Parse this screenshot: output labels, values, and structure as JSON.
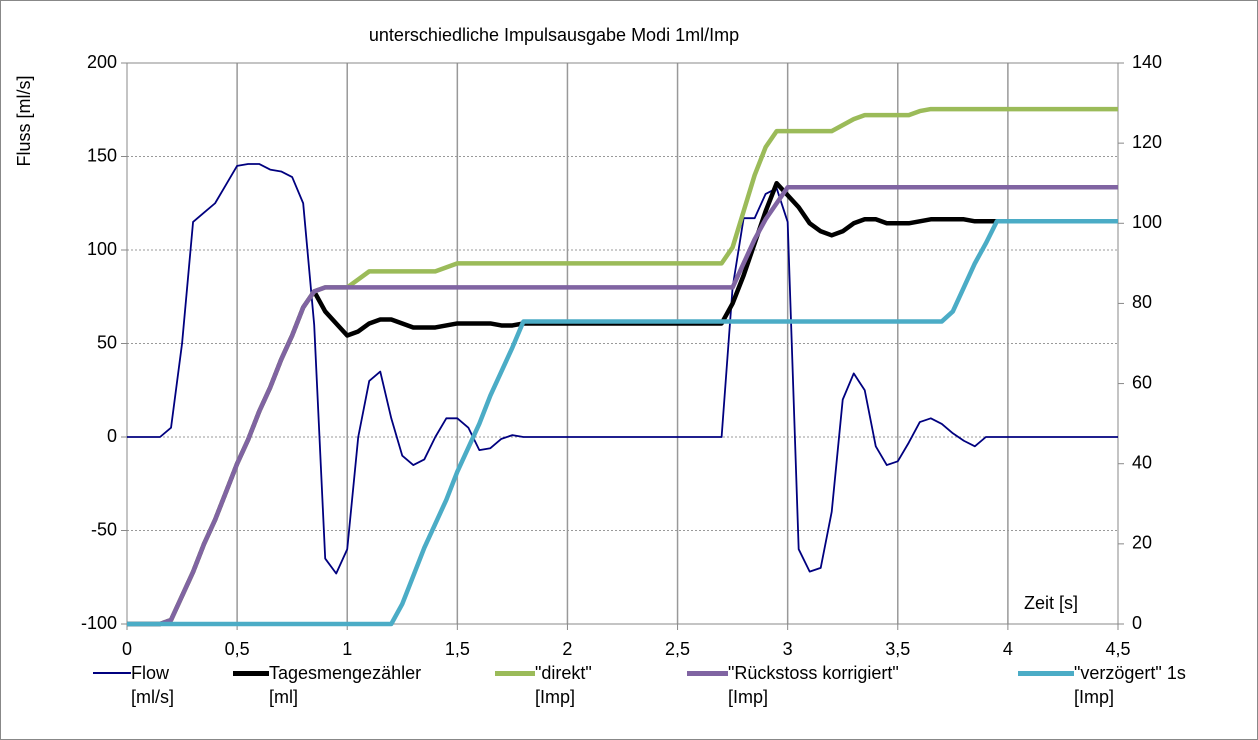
{
  "chart_data": {
    "type": "line",
    "title": "unterschiedliche   Impulsausgabe   Modi 1ml/Imp",
    "y_label": "Fluss [ml/s]",
    "x_label": "Zeit  [s]",
    "grid": true,
    "xlim": [
      0,
      4.5
    ],
    "xticks": [
      0,
      {
        "value": 0.5,
        "label": "0,5"
      },
      1,
      {
        "value": 1.5,
        "label": "1,5"
      },
      2,
      {
        "value": 2.5,
        "label": "2,5"
      },
      3,
      {
        "value": 3.5,
        "label": "3,5"
      },
      4,
      {
        "value": 4.5,
        "label": "4,5"
      }
    ],
    "ylim": [
      -100,
      200
    ],
    "yticks": [
      -100,
      -50,
      0,
      50,
      100,
      150,
      200
    ],
    "y2lim": [
      0,
      140
    ],
    "y2ticks": [
      0,
      20,
      40,
      60,
      80,
      100,
      120,
      140
    ],
    "x": [
      0,
      0.05,
      0.1,
      0.15,
      0.2,
      0.25,
      0.3,
      0.35,
      0.4,
      0.45,
      0.5,
      0.55,
      0.6,
      0.65,
      0.7,
      0.75,
      0.8,
      0.85,
      0.9,
      0.95,
      1,
      1.05,
      1.1,
      1.15,
      1.2,
      1.25,
      1.3,
      1.35,
      1.4,
      1.45,
      1.5,
      1.55,
      1.6,
      1.65,
      1.7,
      1.75,
      1.8,
      1.85,
      1.9,
      1.95,
      2,
      2.05,
      2.1,
      2.15,
      2.2,
      2.25,
      2.3,
      2.35,
      2.4,
      2.45,
      2.5,
      2.55,
      2.6,
      2.65,
      2.7,
      2.75,
      2.8,
      2.85,
      2.9,
      2.95,
      3,
      3.05,
      3.1,
      3.15,
      3.2,
      3.25,
      3.3,
      3.35,
      3.4,
      3.45,
      3.5,
      3.55,
      3.6,
      3.65,
      3.7,
      3.75,
      3.8,
      3.85,
      3.9,
      3.95,
      4,
      4.05,
      4.1,
      4.15,
      4.2,
      4.25,
      4.3,
      4.35,
      4.4,
      4.45,
      4.5
    ],
    "series": [
      {
        "name": "Flow [ml/s]",
        "color": "#00007f",
        "axis": "y",
        "values": [
          0,
          0,
          0,
          0,
          5,
          50,
          115,
          120,
          125,
          135,
          145,
          146,
          146,
          143,
          142,
          139,
          125,
          60,
          -65,
          -73,
          -60,
          0,
          30,
          35,
          10,
          -10,
          -15,
          -12,
          0,
          10,
          10,
          5,
          -7,
          -6,
          -1,
          1,
          0,
          0,
          0,
          0,
          0,
          0,
          0,
          0,
          0,
          0,
          0,
          0,
          0,
          0,
          0,
          0,
          0,
          0,
          0,
          80,
          117,
          117,
          130,
          133,
          115,
          -60,
          -72,
          -70,
          -40,
          20,
          34,
          25,
          -5,
          -15,
          -13,
          -3,
          8,
          10,
          7,
          2,
          -2,
          -5,
          0,
          0,
          0,
          0,
          0,
          0,
          0,
          0,
          0,
          0,
          0,
          0,
          0
        ]
      },
      {
        "name": "Tagesmengezähler [ml]",
        "color": "#000000",
        "axis": "y2",
        "values": [
          0,
          0,
          0,
          0,
          1,
          7,
          13,
          20,
          26,
          33,
          40,
          46,
          53,
          59,
          66,
          72,
          79,
          83,
          78,
          75,
          72,
          73,
          75,
          76,
          76,
          75,
          74,
          74,
          74,
          74.5,
          75,
          75,
          75,
          75,
          74.5,
          74.5,
          75,
          75,
          75,
          75,
          75,
          75,
          75,
          75,
          75,
          75,
          75,
          75,
          75,
          75,
          75,
          75,
          75,
          75,
          75,
          80,
          87,
          95,
          103,
          110,
          107,
          104,
          100,
          98,
          97,
          98,
          100,
          101,
          101,
          100,
          100,
          100,
          100.5,
          101,
          101,
          101,
          101,
          100.5,
          100.5,
          100.5,
          100.5,
          100.5,
          100.5,
          100.5,
          100.5,
          100.5,
          100.5,
          100.5,
          100.5,
          100.5,
          100.5
        ]
      },
      {
        "name": "\"direkt\" [Imp]",
        "color": "#9bbb59",
        "axis": "y2",
        "values": [
          0,
          0,
          0,
          0,
          1,
          7,
          13,
          20,
          26,
          33,
          40,
          46,
          53,
          59,
          66,
          72,
          79,
          83,
          84,
          84,
          84,
          86,
          88,
          88,
          88,
          88,
          88,
          88,
          88,
          89,
          90,
          90,
          90,
          90,
          90,
          90,
          90,
          90,
          90,
          90,
          90,
          90,
          90,
          90,
          90,
          90,
          90,
          90,
          90,
          90,
          90,
          90,
          90,
          90,
          90,
          94,
          103,
          112,
          119,
          123,
          123,
          123,
          123,
          123,
          123,
          124.5,
          126,
          127,
          127,
          127,
          127,
          127,
          128,
          128.5,
          128.5,
          128.5,
          128.5,
          128.5,
          128.5,
          128.5,
          128.5,
          128.5,
          128.5,
          128.5,
          128.5,
          128.5,
          128.5,
          128.5,
          128.5,
          128.5,
          128.5
        ]
      },
      {
        "name": "\"Rückstoss korrigiert\" [Imp]",
        "color": "#8064a2",
        "axis": "y2",
        "values": [
          0,
          0,
          0,
          0,
          1,
          7,
          13,
          20,
          26,
          33,
          40,
          46,
          53,
          59,
          66,
          72,
          79,
          83,
          84,
          84,
          84,
          84,
          84,
          84,
          84,
          84,
          84,
          84,
          84,
          84,
          84,
          84,
          84,
          84,
          84,
          84,
          84,
          84,
          84,
          84,
          84,
          84,
          84,
          84,
          84,
          84,
          84,
          84,
          84,
          84,
          84,
          84,
          84,
          84,
          84,
          84,
          90,
          96,
          101,
          105,
          109,
          109,
          109,
          109,
          109,
          109,
          109,
          109,
          109,
          109,
          109,
          109,
          109,
          109,
          109,
          109,
          109,
          109,
          109,
          109,
          109,
          109,
          109,
          109,
          109,
          109,
          109,
          109,
          109,
          109,
          109
        ]
      },
      {
        "name": "\"verzögert\" 1s [Imp]",
        "color": "#4bacc6",
        "axis": "y2",
        "values": [
          0,
          0,
          0,
          0,
          0,
          0,
          0,
          0,
          0,
          0,
          0,
          0,
          0,
          0,
          0,
          0,
          0,
          0,
          0,
          0,
          0,
          0,
          0,
          0,
          0,
          5,
          12,
          19,
          25,
          31,
          38,
          44,
          50,
          57,
          63,
          69,
          75.5,
          75.5,
          75.5,
          75.5,
          75.5,
          75.5,
          75.5,
          75.5,
          75.5,
          75.5,
          75.5,
          75.5,
          75.5,
          75.5,
          75.5,
          75.5,
          75.5,
          75.5,
          75.5,
          75.5,
          75.5,
          75.5,
          75.5,
          75.5,
          75.5,
          75.5,
          75.5,
          75.5,
          75.5,
          75.5,
          75.5,
          75.5,
          75.5,
          75.5,
          75.5,
          75.5,
          75.5,
          75.5,
          75.5,
          78,
          84,
          90,
          95,
          100.5,
          100.5,
          100.5,
          100.5,
          100.5,
          100.5,
          100.5,
          100.5,
          100.5,
          100.5,
          100.5,
          100.5
        ]
      }
    ]
  }
}
